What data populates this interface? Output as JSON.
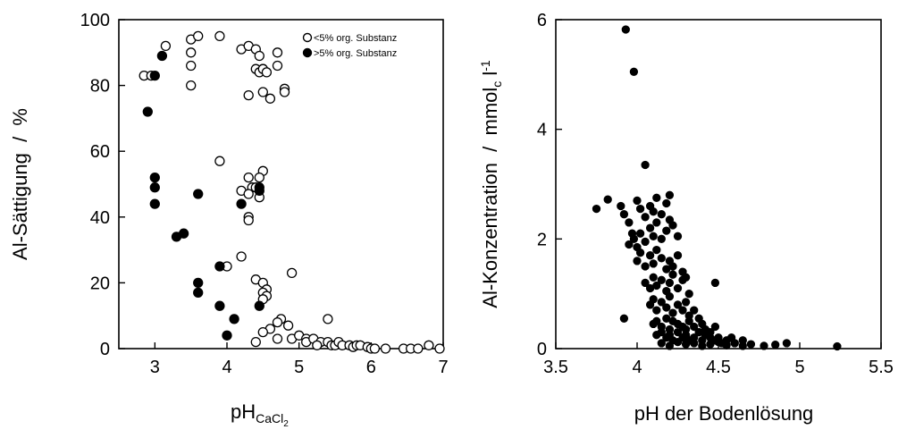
{
  "chart_data": [
    {
      "type": "scatter",
      "title": "",
      "xlabel": "pH",
      "xlabel_sub": "CaCl",
      "xlabel_sub2": "2",
      "ylabel": "Al-Sättigung  /  %",
      "xlim": [
        2.5,
        7
      ],
      "ylim": [
        0,
        100
      ],
      "xticks": [
        3,
        4,
        5,
        6,
        7
      ],
      "yticks": [
        0,
        20,
        40,
        60,
        80,
        100
      ],
      "grid": false,
      "legend": "top-right",
      "series": [
        {
          "name": "<5% org. Substanz",
          "marker": "open-circle",
          "x": [
            2.85,
            2.95,
            3.15,
            3.5,
            3.6,
            3.5,
            3.5,
            3.5,
            3.9,
            4.2,
            4.3,
            4.4,
            4.45,
            4.5,
            4.4,
            4.45,
            4.5,
            4.55,
            4.3,
            4.6,
            4.5,
            4.7,
            4.7,
            4.8,
            4.8,
            3.9,
            4.5,
            4.45,
            4.3,
            4.35,
            4.4,
            4.2,
            4.3,
            4.45,
            4.3,
            4.3,
            4.2,
            4.0,
            4.4,
            4.5,
            4.55,
            4.5,
            4.55,
            4.5,
            4.9,
            4.75,
            4.7,
            4.85,
            4.6,
            4.5,
            4.7,
            4.4,
            4.9,
            5.0,
            5.1,
            5.1,
            5.2,
            5.3,
            5.4,
            5.45,
            5.5,
            5.55,
            5.6,
            5.7,
            5.75,
            5.8,
            5.85,
            5.95,
            6.0,
            6.05,
            6.2,
            6.45,
            6.55,
            6.65,
            6.8,
            6.95,
            5.4,
            5.25
          ],
          "y": [
            83,
            83,
            92,
            94,
            95,
            90,
            86,
            80,
            95,
            91,
            92,
            91,
            89,
            85,
            85,
            84,
            85,
            84,
            77,
            76,
            78,
            90,
            86,
            79,
            78,
            57,
            54,
            52,
            52,
            49,
            49,
            48,
            47,
            46,
            40,
            39,
            28,
            25,
            21,
            20,
            18,
            17,
            16,
            15,
            23,
            9,
            8,
            7,
            6,
            5,
            3,
            2,
            3,
            4,
            3,
            2,
            3,
            2,
            2,
            1,
            1,
            2,
            1,
            1,
            0.5,
            1,
            1,
            0.5,
            0,
            0,
            0,
            0,
            0,
            0,
            1,
            0,
            9,
            1
          ]
        },
        {
          "name": ">5% org. Substanz",
          "marker": "filled-circle",
          "x": [
            2.9,
            3.0,
            3.1,
            3.0,
            3.0,
            3.0,
            3.6,
            3.3,
            3.4,
            4.2,
            4.45,
            4.45,
            3.9,
            3.6,
            3.6,
            3.9,
            4.1,
            4.0,
            4.45
          ],
          "y": [
            72,
            83,
            89,
            52,
            49,
            44,
            47,
            34,
            35,
            44,
            49,
            48,
            25,
            20,
            17,
            13,
            9,
            4,
            13
          ]
        }
      ]
    },
    {
      "type": "scatter",
      "title": "",
      "xlabel": "pH der Bodenlösung",
      "ylabel": "Al-Konzentration  /  mmol",
      "ylabel_sub": "c",
      "ylabel_tail": " l",
      "ylabel_sup": "-1",
      "xlim": [
        3.5,
        5.5
      ],
      "ylim": [
        0,
        6
      ],
      "xticks": [
        3.5,
        4,
        4.5,
        5,
        5.5
      ],
      "ytick_values": [
        0,
        2,
        4,
        6
      ],
      "yticks": [
        "0",
        "2",
        "4",
        "6"
      ],
      "grid": false,
      "series": [
        {
          "marker": "filled-circle",
          "x": [
            3.93,
            3.98,
            4.05,
            3.75,
            3.82,
            3.9,
            3.92,
            3.95,
            3.97,
            4.0,
            4.02,
            4.05,
            4.08,
            4.1,
            4.12,
            4.15,
            4.18,
            4.2,
            3.95,
            3.98,
            4.0,
            4.02,
            4.05,
            4.08,
            4.1,
            4.12,
            4.15,
            4.18,
            4.2,
            4.22,
            4.25,
            4.0,
            4.02,
            4.05,
            4.08,
            4.1,
            4.12,
            4.15,
            4.18,
            4.2,
            4.22,
            4.25,
            4.28,
            4.05,
            4.08,
            4.1,
            4.12,
            4.15,
            4.18,
            4.2,
            4.22,
            4.25,
            4.28,
            4.3,
            4.32,
            4.08,
            4.1,
            4.12,
            4.15,
            4.18,
            4.2,
            4.22,
            4.25,
            4.28,
            4.3,
            4.32,
            4.35,
            4.38,
            4.1,
            4.12,
            4.15,
            4.18,
            4.2,
            4.22,
            4.25,
            4.28,
            4.3,
            4.32,
            4.35,
            4.38,
            4.4,
            4.42,
            4.45,
            4.48,
            4.12,
            4.15,
            4.18,
            4.2,
            4.22,
            4.25,
            4.28,
            4.3,
            4.32,
            4.35,
            4.38,
            4.4,
            4.42,
            4.45,
            4.48,
            4.5,
            4.52,
            4.55,
            4.58,
            4.6,
            4.65,
            4.15,
            4.2,
            4.25,
            4.3,
            4.35,
            4.4,
            4.45,
            4.5,
            4.55,
            4.6,
            4.65,
            4.7,
            4.78,
            4.85,
            4.92,
            5.23,
            4.48,
            3.92
          ],
          "y": [
            5.82,
            5.05,
            3.35,
            2.55,
            2.72,
            2.6,
            2.45,
            2.3,
            2.1,
            2.7,
            2.55,
            2.4,
            2.6,
            2.5,
            2.75,
            2.45,
            2.65,
            2.8,
            1.9,
            2.0,
            1.85,
            2.1,
            1.95,
            2.2,
            2.05,
            2.3,
            2.0,
            2.15,
            2.35,
            2.25,
            2.05,
            1.6,
            1.75,
            1.5,
            1.7,
            1.55,
            1.8,
            1.65,
            1.45,
            1.6,
            1.5,
            1.7,
            1.4,
            1.2,
            1.1,
            1.3,
            1.15,
            1.25,
            1.05,
            1.2,
            1.35,
            1.1,
            1.25,
            1.3,
            1.0,
            0.8,
            0.9,
            0.7,
            0.85,
            0.75,
            0.95,
            0.65,
            0.8,
            0.7,
            0.85,
            0.6,
            0.7,
            0.55,
            0.45,
            0.5,
            0.4,
            0.55,
            0.35,
            0.5,
            0.45,
            0.4,
            0.35,
            0.5,
            0.4,
            0.3,
            0.45,
            0.35,
            0.3,
            0.4,
            0.25,
            0.3,
            0.2,
            0.25,
            0.15,
            0.3,
            0.2,
            0.25,
            0.15,
            0.2,
            0.3,
            0.15,
            0.25,
            0.2,
            0.15,
            0.2,
            0.1,
            0.15,
            0.2,
            0.1,
            0.15,
            0.1,
            0.05,
            0.12,
            0.08,
            0.1,
            0.05,
            0.08,
            0.12,
            0.06,
            0.1,
            0.05,
            0.08,
            0.05,
            0.07,
            0.1,
            0.04,
            1.2,
            0.55
          ]
        }
      ]
    }
  ]
}
